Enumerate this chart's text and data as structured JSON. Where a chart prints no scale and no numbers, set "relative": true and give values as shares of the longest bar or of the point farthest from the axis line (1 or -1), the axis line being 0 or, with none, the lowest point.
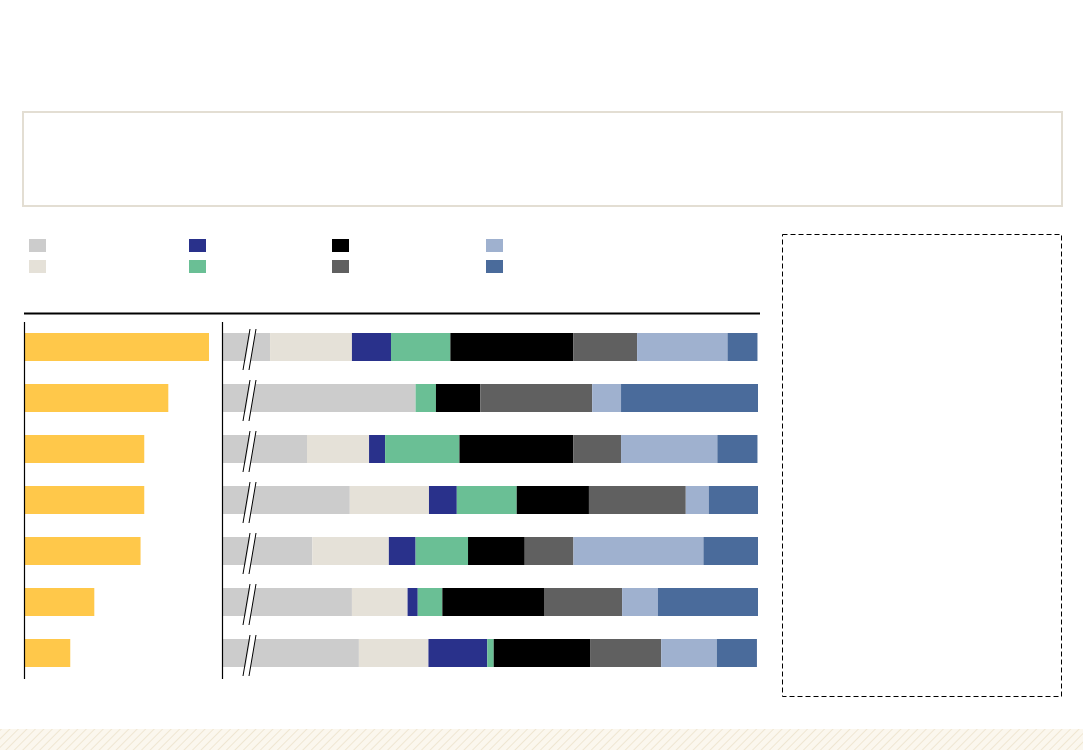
{
  "chart_data": [
    {
      "type": "bar",
      "orientation": "horizontal",
      "relative": true,
      "categories": [
        null,
        null,
        null,
        null,
        null,
        null,
        null
      ],
      "values": [
        1,
        0.78,
        0.65,
        0.65,
        0.63,
        0.38,
        0.25
      ],
      "color": "#ffc84a"
    },
    {
      "type": "bar",
      "orientation": "horizontal",
      "relative": true,
      "stacked": true,
      "categories": [
        null,
        null,
        null,
        null,
        null,
        null,
        null
      ],
      "series": [
        {
          "color": "#cccccc",
          "values": [
            0.088,
            0.36,
            0.157,
            0.237,
            0.167,
            0.241,
            0.254
          ]
        },
        {
          "color": "#e5e1d8",
          "values": [
            0.153,
            0,
            0.116,
            0.148,
            0.143,
            0.104,
            0.13
          ]
        },
        {
          "color": "#29318b",
          "values": [
            0.073,
            0,
            0.03,
            0.052,
            0.05,
            0.019,
            0.11
          ]
        },
        {
          "color": "#6abf95",
          "values": [
            0.111,
            0.038,
            0.139,
            0.112,
            0.098,
            0.046,
            0.012
          ]
        },
        {
          "color": "#000000",
          "values": [
            0.23,
            0.083,
            0.213,
            0.135,
            0.106,
            0.19,
            0.181
          ]
        },
        {
          "color": "#606060",
          "values": [
            0.119,
            0.209,
            0.089,
            0.181,
            0.091,
            0.146,
            0.132
          ]
        },
        {
          "color": "#9fb1cf",
          "values": [
            0.169,
            0.054,
            0.18,
            0.043,
            0.243,
            0.067,
            0.104
          ]
        },
        {
          "color": "#4a6b9b",
          "values": [
            0.056,
            0.256,
            0.075,
            0.092,
            0.102,
            0.187,
            0.075
          ]
        }
      ]
    }
  ]
}
